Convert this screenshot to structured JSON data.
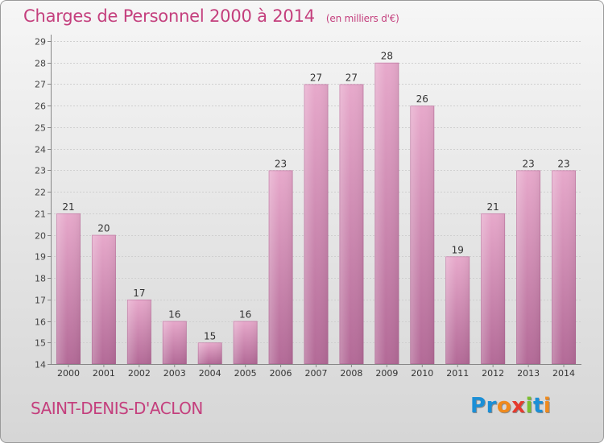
{
  "title": "Charges de Personnel 2000 à 2014",
  "subtitle": "(en milliers d'€)",
  "town": "SAINT-DENIS-D'ACLON",
  "logo": {
    "letters": [
      "P",
      "r",
      "o",
      "x",
      "i",
      "t",
      "i"
    ],
    "colors": [
      "#1b8fd6",
      "#1b8fd6",
      "#f08a1c",
      "#e53a2e",
      "#7bbf2e",
      "#1b8fd6",
      "#f08a1c"
    ]
  },
  "colors": {
    "accent": "#c43f7d",
    "bar_top": "#e7a9cb",
    "bar_bottom": "#b36a97"
  },
  "chart_data": {
    "type": "bar",
    "title": "Charges de Personnel 2000 à 2014",
    "subtitle": "(en milliers d'€)",
    "categories": [
      "2000",
      "2001",
      "2002",
      "2003",
      "2004",
      "2005",
      "2006",
      "2007",
      "2008",
      "2009",
      "2010",
      "2011",
      "2012",
      "2013",
      "2014"
    ],
    "values": [
      21,
      20,
      17,
      16,
      15,
      16,
      23,
      27,
      27,
      28,
      26,
      19,
      21,
      23,
      23
    ],
    "ylim": [
      14,
      29
    ],
    "yticks": [
      14,
      15,
      16,
      17,
      18,
      19,
      20,
      21,
      22,
      23,
      24,
      25,
      26,
      27,
      28,
      29
    ],
    "grid": true,
    "xlabel": "",
    "ylabel": ""
  }
}
